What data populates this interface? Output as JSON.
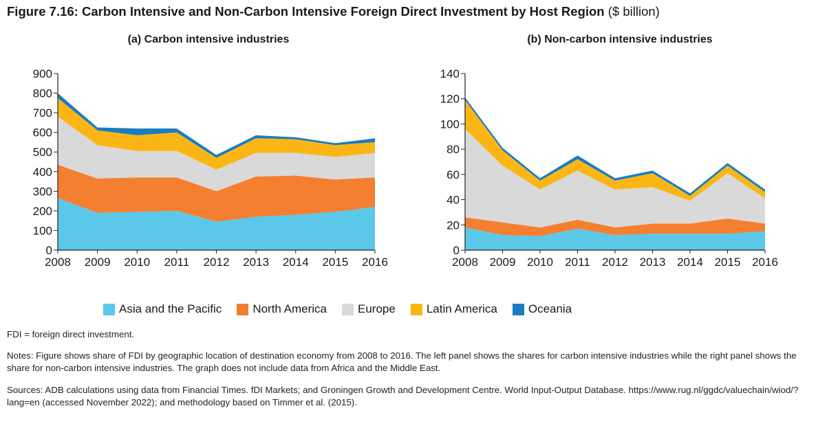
{
  "figure": {
    "title_bold": "Figure 7.16: Carbon Intensive and Non-Carbon Intensive Foreign Direct Investment by Host Region",
    "title_unit": "($ billion)"
  },
  "colors": {
    "Asia and the Pacific": "#5bc8ea",
    "North America": "#f47f30",
    "Europe": "#d9d9d9",
    "Latin America": "#fbb616",
    "Oceania": "#1a7dbf"
  },
  "legend": [
    "Asia and the Pacific",
    "North America",
    "Europe",
    "Latin America",
    "Oceania"
  ],
  "chart_data": [
    {
      "type": "area",
      "stacked": true,
      "title": "(a) Carbon intensive industries",
      "x": [
        "2008",
        "2009",
        "2010",
        "2011",
        "2012",
        "2013",
        "2014",
        "2015",
        "2016"
      ],
      "ylim": [
        0,
        900
      ],
      "yticks": [
        0,
        100,
        200,
        300,
        400,
        500,
        600,
        700,
        800,
        900
      ],
      "grid": false,
      "series": [
        {
          "name": "Asia and the Pacific",
          "values": [
            265,
            190,
            195,
            200,
            145,
            170,
            180,
            195,
            220
          ]
        },
        {
          "name": "North America",
          "values": [
            170,
            175,
            175,
            170,
            155,
            205,
            200,
            165,
            150
          ]
        },
        {
          "name": "Europe",
          "values": [
            245,
            170,
            135,
            135,
            110,
            120,
            115,
            115,
            125
          ]
        },
        {
          "name": "Latin America",
          "values": [
            95,
            75,
            80,
            95,
            60,
            75,
            70,
            60,
            55
          ]
        },
        {
          "name": "Oceania",
          "values": [
            25,
            15,
            35,
            20,
            15,
            15,
            10,
            10,
            20
          ]
        }
      ]
    },
    {
      "type": "area",
      "stacked": true,
      "title": "(b) Non-carbon intensive industries",
      "x": [
        "2008",
        "2009",
        "2010",
        "2011",
        "2012",
        "2013",
        "2014",
        "2015",
        "2016"
      ],
      "ylim": [
        0,
        140
      ],
      "yticks": [
        0,
        20,
        40,
        60,
        80,
        100,
        120,
        140
      ],
      "grid": false,
      "series": [
        {
          "name": "Asia and the Pacific",
          "values": [
            18,
            12,
            11,
            17,
            12,
            13,
            13,
            13,
            15
          ]
        },
        {
          "name": "North America",
          "values": [
            8,
            10,
            7,
            7,
            6,
            8,
            8,
            12,
            6
          ]
        },
        {
          "name": "Europe",
          "values": [
            70,
            45,
            30,
            39,
            30,
            29,
            18,
            36,
            20
          ]
        },
        {
          "name": "Latin America",
          "values": [
            23,
            12,
            7,
            9,
            7,
            11,
            4,
            6,
            5
          ]
        },
        {
          "name": "Oceania",
          "values": [
            2,
            2,
            2,
            3,
            2,
            2,
            2,
            2,
            2
          ]
        }
      ]
    }
  ],
  "notes": {
    "abbreviation": "FDI = foreign direct investment.",
    "notes": "Notes: Figure shows share of FDI by geographic location of destination economy from 2008 to 2016. The left panel shows the shares for carbon intensive industries while the right panel shows the share for non-carbon intensive industries. The graph does not include data from Africa and the Middle East.",
    "sources": "Sources: ADB calculations using data from Financial Times. fDI Markets; and Groningen Growth and Development Centre. World Input-Output Database. https://www.rug.nl/ggdc/valuechain/wiod/?lang=en (accessed November 2022); and methodology based on Timmer et al. (2015)."
  }
}
